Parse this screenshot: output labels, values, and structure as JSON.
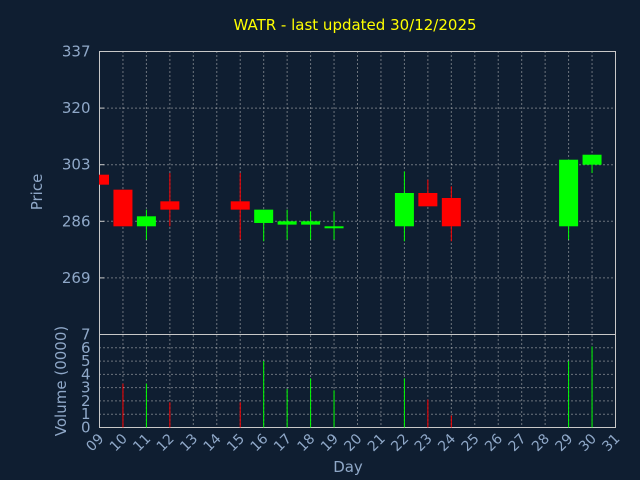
{
  "chart_data": {
    "type": "candlestick",
    "title": "WATR - last updated 30/12/2025",
    "xlabel": "Day",
    "ylabel_price": "Price",
    "ylabel_volume": "Volume (0000)",
    "x_ticks": [
      "09",
      "10",
      "11",
      "12",
      "13",
      "14",
      "15",
      "16",
      "17",
      "18",
      "19",
      "20",
      "21",
      "22",
      "23",
      "24",
      "25",
      "26",
      "27",
      "28",
      "29",
      "30",
      "31"
    ],
    "price_ylim": [
      252,
      337
    ],
    "price_ticks": [
      "337",
      "320",
      "303",
      "286",
      "269"
    ],
    "volume_ylim": [
      0,
      7
    ],
    "volume_ticks": [
      "0",
      "1",
      "2",
      "3",
      "4",
      "5",
      "6",
      "7"
    ],
    "up_color": "#00ff00",
    "down_color": "#ff0000",
    "grid": true,
    "candles": [
      {
        "day": 9,
        "open": 300.0,
        "close": 297.0,
        "high": 300.0,
        "low": 297.0,
        "volume": 0.0
      },
      {
        "day": 10,
        "open": 295.5,
        "close": 284.5,
        "high": 295.5,
        "low": 284.5,
        "volume": 3.3
      },
      {
        "day": 11,
        "open": 284.5,
        "close": 287.5,
        "high": 289.5,
        "low": 280.5,
        "volume": 3.3
      },
      {
        "day": 12,
        "open": 292.0,
        "close": 289.5,
        "high": 300.5,
        "low": 284.5,
        "volume": 1.9
      },
      {
        "day": 15,
        "open": 292.0,
        "close": 289.5,
        "high": 300.5,
        "low": 280.5,
        "volume": 1.9
      },
      {
        "day": 16,
        "open": 285.5,
        "close": 289.5,
        "high": 289.5,
        "low": 280.0,
        "volume": 5.0
      },
      {
        "day": 17,
        "open": 285.0,
        "close": 286.0,
        "high": 289.5,
        "low": 280.5,
        "volume": 2.9
      },
      {
        "day": 18,
        "open": 285.0,
        "close": 286.0,
        "high": 289.0,
        "low": 280.5,
        "volume": 3.7
      },
      {
        "day": 19,
        "open": 284.0,
        "close": 284.5,
        "high": 289.0,
        "low": 280.5,
        "volume": 2.8
      },
      {
        "day": 22,
        "open": 284.5,
        "close": 294.5,
        "high": 301.0,
        "low": 280.0,
        "volume": 3.7
      },
      {
        "day": 23,
        "open": 294.5,
        "close": 290.5,
        "high": 298.5,
        "low": 290.5,
        "volume": 2.1
      },
      {
        "day": 24,
        "open": 293.0,
        "close": 284.5,
        "high": 296.5,
        "low": 280.0,
        "volume": 0.9
      },
      {
        "day": 29,
        "open": 284.5,
        "close": 304.5,
        "high": 304.5,
        "low": 280.5,
        "volume": 5.0
      },
      {
        "day": 30,
        "open": 303.0,
        "close": 306.0,
        "high": 306.0,
        "low": 300.5,
        "volume": 6.1
      }
    ]
  }
}
